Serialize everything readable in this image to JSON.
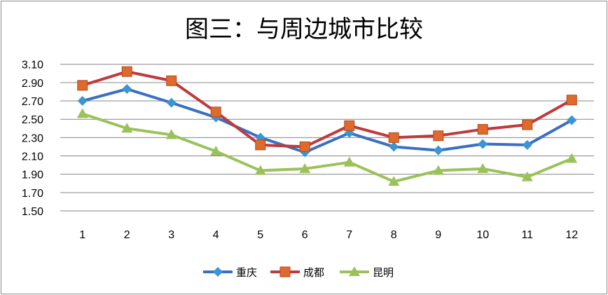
{
  "chart_data": {
    "type": "line",
    "title": "图三：与周边城市比较",
    "categories": [
      "1",
      "2",
      "3",
      "4",
      "5",
      "6",
      "7",
      "8",
      "9",
      "10",
      "11",
      "12"
    ],
    "ylim": [
      1.5,
      3.1
    ],
    "yticks": [
      "1.50",
      "1.70",
      "1.90",
      "2.10",
      "2.30",
      "2.50",
      "2.70",
      "2.90",
      "3.10"
    ],
    "grid": true,
    "legend_position": "bottom",
    "series": [
      {
        "name": "重庆",
        "color": "#3a6fc4",
        "marker": "diamond",
        "marker_color": "#3b95d3",
        "values": [
          2.7,
          2.83,
          2.68,
          2.52,
          2.3,
          2.14,
          2.35,
          2.2,
          2.16,
          2.23,
          2.22,
          2.49
        ]
      },
      {
        "name": "成都",
        "color": "#c0393b",
        "marker": "square",
        "marker_color": "#e06a2c",
        "values": [
          2.87,
          3.02,
          2.92,
          2.58,
          2.22,
          2.2,
          2.43,
          2.3,
          2.32,
          2.39,
          2.44,
          2.71
        ]
      },
      {
        "name": "昆明",
        "color": "#9bc25a",
        "marker": "triangle",
        "marker_color": "#9bc25a",
        "values": [
          2.56,
          2.4,
          2.33,
          2.15,
          1.94,
          1.96,
          2.03,
          1.82,
          1.94,
          1.96,
          1.87,
          2.07
        ]
      }
    ]
  }
}
